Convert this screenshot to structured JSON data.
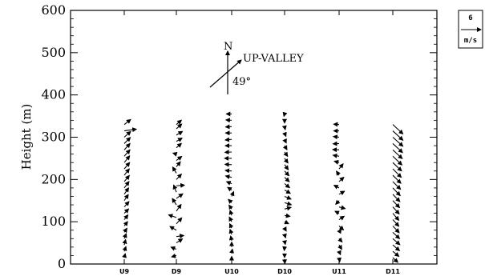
{
  "chart_data": {
    "type": "vector-profile",
    "ylabel": "Height (m)",
    "ylim": [
      0,
      600
    ],
    "yticks": [
      0,
      100,
      200,
      300,
      400,
      500,
      600
    ],
    "xlabel": "",
    "grid": false,
    "legend": {
      "placement": "top-right-outside",
      "value": "6",
      "unit": "m/s"
    },
    "annotation": {
      "north_label": "N",
      "direction_label": "UP-VALLEY",
      "angle_label": "49°",
      "angle_deg": 49
    },
    "profiles": [
      {
        "name": "U9",
        "vectors": [
          {
            "h": 15,
            "dx": 0.3,
            "dy": 1.2
          },
          {
            "h": 30,
            "dx": 0.5,
            "dy": 1.4
          },
          {
            "h": 45,
            "dx": 0.4,
            "dy": 1.6
          },
          {
            "h": 60,
            "dx": 0.6,
            "dy": 1.5
          },
          {
            "h": 75,
            "dx": 0.8,
            "dy": 1.2
          },
          {
            "h": 90,
            "dx": 1.0,
            "dy": 1.3
          },
          {
            "h": 105,
            "dx": 1.1,
            "dy": 1.4
          },
          {
            "h": 120,
            "dx": 1.3,
            "dy": 1.3
          },
          {
            "h": 135,
            "dx": 1.4,
            "dy": 1.6
          },
          {
            "h": 150,
            "dx": 1.2,
            "dy": 1.8
          },
          {
            "h": 165,
            "dx": 1.3,
            "dy": 1.9
          },
          {
            "h": 180,
            "dx": 1.4,
            "dy": 1.9
          },
          {
            "h": 195,
            "dx": 1.5,
            "dy": 1.8
          },
          {
            "h": 210,
            "dx": 1.5,
            "dy": 1.9
          },
          {
            "h": 225,
            "dx": 1.6,
            "dy": 1.9
          },
          {
            "h": 240,
            "dx": 1.6,
            "dy": 2.0
          },
          {
            "h": 255,
            "dx": 1.7,
            "dy": 1.9
          },
          {
            "h": 270,
            "dx": 1.7,
            "dy": 1.9
          },
          {
            "h": 285,
            "dx": 1.8,
            "dy": 1.8
          },
          {
            "h": 300,
            "dx": 1.9,
            "dy": 1.7
          },
          {
            "h": 315,
            "dx": 3.6,
            "dy": 0.5
          },
          {
            "h": 330,
            "dx": 1.9,
            "dy": 1.5
          }
        ]
      },
      {
        "name": "D9",
        "vectors": [
          {
            "h": 20,
            "dx": -1.4,
            "dy": -0.4
          },
          {
            "h": 35,
            "dx": -1.6,
            "dy": 0.6
          },
          {
            "h": 50,
            "dx": 1.8,
            "dy": 1.2
          },
          {
            "h": 65,
            "dx": 2.2,
            "dy": 0.3
          },
          {
            "h": 80,
            "dx": -1.9,
            "dy": 1.1
          },
          {
            "h": 95,
            "dx": 1.6,
            "dy": 1.8
          },
          {
            "h": 110,
            "dx": -2.3,
            "dy": 0.8
          },
          {
            "h": 125,
            "dx": 1.4,
            "dy": 2.0
          },
          {
            "h": 140,
            "dx": -1.2,
            "dy": 1.9
          },
          {
            "h": 155,
            "dx": 1.9,
            "dy": 1.4
          },
          {
            "h": 170,
            "dx": -0.8,
            "dy": 2.1
          },
          {
            "h": 185,
            "dx": 2.4,
            "dy": 0.2
          },
          {
            "h": 200,
            "dx": 1.5,
            "dy": 1.6
          },
          {
            "h": 215,
            "dx": -1.1,
            "dy": 1.8
          },
          {
            "h": 230,
            "dx": 1.2,
            "dy": 1.5
          },
          {
            "h": 245,
            "dx": 1.6,
            "dy": 1.2
          },
          {
            "h": 260,
            "dx": -1.0,
            "dy": 0.3
          },
          {
            "h": 275,
            "dx": 1.5,
            "dy": 1.3
          },
          {
            "h": 290,
            "dx": 1.7,
            "dy": 1.0
          },
          {
            "h": 305,
            "dx": 1.8,
            "dy": 1.1
          },
          {
            "h": 320,
            "dx": 1.6,
            "dy": 1.4
          },
          {
            "h": 330,
            "dx": 1.5,
            "dy": 1.3
          }
        ]
      },
      {
        "name": "U10",
        "vectors": [
          {
            "h": 10,
            "dx": 0.0,
            "dy": 1.0
          },
          {
            "h": 25,
            "dx": 0.2,
            "dy": 1.3
          },
          {
            "h": 40,
            "dx": 0.0,
            "dy": 1.5
          },
          {
            "h": 55,
            "dx": -0.3,
            "dy": 1.4
          },
          {
            "h": 70,
            "dx": -0.5,
            "dy": 1.5
          },
          {
            "h": 85,
            "dx": -0.6,
            "dy": 1.3
          },
          {
            "h": 100,
            "dx": -0.7,
            "dy": 1.4
          },
          {
            "h": 115,
            "dx": -0.5,
            "dy": 1.5
          },
          {
            "h": 130,
            "dx": -0.8,
            "dy": 1.2
          },
          {
            "h": 145,
            "dx": -1.0,
            "dy": 1.0
          },
          {
            "h": 160,
            "dx": 0.6,
            "dy": 1.4
          },
          {
            "h": 175,
            "dx": -1.2,
            "dy": 0.8
          },
          {
            "h": 190,
            "dx": -1.5,
            "dy": 0.6
          },
          {
            "h": 205,
            "dx": -1.8,
            "dy": 0.4
          },
          {
            "h": 220,
            "dx": -1.9,
            "dy": 0.2
          },
          {
            "h": 235,
            "dx": -2.0,
            "dy": 0.1
          },
          {
            "h": 250,
            "dx": -2.1,
            "dy": 0.0
          },
          {
            "h": 265,
            "dx": -2.0,
            "dy": -0.1
          },
          {
            "h": 280,
            "dx": -1.9,
            "dy": 0.0
          },
          {
            "h": 295,
            "dx": -1.9,
            "dy": -0.2
          },
          {
            "h": 310,
            "dx": -1.8,
            "dy": 0.0
          },
          {
            "h": 325,
            "dx": -1.8,
            "dy": -0.1
          },
          {
            "h": 340,
            "dx": -1.7,
            "dy": 0.1
          },
          {
            "h": 355,
            "dx": -1.6,
            "dy": 0.0
          }
        ]
      },
      {
        "name": "D10",
        "vectors": [
          {
            "h": 10,
            "dx": 0.1,
            "dy": -1.1
          },
          {
            "h": 25,
            "dx": 0.0,
            "dy": -1.2
          },
          {
            "h": 40,
            "dx": -0.1,
            "dy": -1.0
          },
          {
            "h": 55,
            "dx": 0.2,
            "dy": -1.1
          },
          {
            "h": 70,
            "dx": 0.3,
            "dy": -1.0
          },
          {
            "h": 85,
            "dx": 0.5,
            "dy": -0.9
          },
          {
            "h": 100,
            "dx": 1.2,
            "dy": -0.6
          },
          {
            "h": 115,
            "dx": 1.6,
            "dy": -0.3
          },
          {
            "h": 130,
            "dx": 1.9,
            "dy": 0.5
          },
          {
            "h": 145,
            "dx": 2.0,
            "dy": -0.6
          },
          {
            "h": 160,
            "dx": 1.9,
            "dy": -0.8
          },
          {
            "h": 175,
            "dx": 1.7,
            "dy": -1.0
          },
          {
            "h": 190,
            "dx": 1.5,
            "dy": -1.2
          },
          {
            "h": 205,
            "dx": 1.4,
            "dy": -1.3
          },
          {
            "h": 220,
            "dx": 1.3,
            "dy": -1.4
          },
          {
            "h": 235,
            "dx": 1.1,
            "dy": -1.5
          },
          {
            "h": 250,
            "dx": 1.0,
            "dy": -1.4
          },
          {
            "h": 265,
            "dx": 0.9,
            "dy": -1.3
          },
          {
            "h": 280,
            "dx": 0.7,
            "dy": -1.2
          },
          {
            "h": 295,
            "dx": 0.5,
            "dy": -1.1
          },
          {
            "h": 310,
            "dx": 0.4,
            "dy": -1.0
          },
          {
            "h": 325,
            "dx": 0.2,
            "dy": -0.9
          },
          {
            "h": 340,
            "dx": 0.0,
            "dy": -0.8
          },
          {
            "h": 355,
            "dx": -0.2,
            "dy": -0.7
          }
        ]
      },
      {
        "name": "U11",
        "vectors": [
          {
            "h": 15,
            "dx": 0.2,
            "dy": -1.2
          },
          {
            "h": 30,
            "dx": 0.4,
            "dy": -1.0
          },
          {
            "h": 45,
            "dx": 0.8,
            "dy": -1.3
          },
          {
            "h": 60,
            "dx": 0.9,
            "dy": -1.0
          },
          {
            "h": 75,
            "dx": 0.6,
            "dy": 0.9
          },
          {
            "h": 90,
            "dx": 1.3,
            "dy": -1.2
          },
          {
            "h": 105,
            "dx": 1.5,
            "dy": 1.0
          },
          {
            "h": 120,
            "dx": -1.2,
            "dy": 0.6
          },
          {
            "h": 135,
            "dx": 1.8,
            "dy": -0.5
          },
          {
            "h": 150,
            "dx": -1.0,
            "dy": -1.1
          },
          {
            "h": 165,
            "dx": 1.6,
            "dy": 0.9
          },
          {
            "h": 180,
            "dx": -1.5,
            "dy": 0.8
          },
          {
            "h": 195,
            "dx": 1.4,
            "dy": 1.3
          },
          {
            "h": 210,
            "dx": -0.8,
            "dy": 1.2
          },
          {
            "h": 225,
            "dx": 1.2,
            "dy": 1.5
          },
          {
            "h": 240,
            "dx": -1.4,
            "dy": 0.4
          },
          {
            "h": 255,
            "dx": -1.8,
            "dy": 0.3
          },
          {
            "h": 270,
            "dx": -1.9,
            "dy": 0.1
          },
          {
            "h": 285,
            "dx": -1.8,
            "dy": -0.1
          },
          {
            "h": 300,
            "dx": -1.7,
            "dy": 0.2
          },
          {
            "h": 315,
            "dx": -1.6,
            "dy": 0.0
          },
          {
            "h": 330,
            "dx": -1.6,
            "dy": 0.1
          }
        ]
      },
      {
        "name": "D11",
        "vectors": [
          {
            "h": 15,
            "dx": 1.5,
            "dy": -1.4
          },
          {
            "h": 30,
            "dx": 1.8,
            "dy": -1.5
          },
          {
            "h": 45,
            "dx": 2.0,
            "dy": -1.7
          },
          {
            "h": 60,
            "dx": 2.1,
            "dy": -1.8
          },
          {
            "h": 75,
            "dx": 2.0,
            "dy": -1.9
          },
          {
            "h": 90,
            "dx": 1.9,
            "dy": -2.0
          },
          {
            "h": 105,
            "dx": 1.8,
            "dy": -2.0
          },
          {
            "h": 120,
            "dx": 1.8,
            "dy": -2.1
          },
          {
            "h": 135,
            "dx": 1.9,
            "dy": -2.1
          },
          {
            "h": 150,
            "dx": 2.0,
            "dy": -2.1
          },
          {
            "h": 165,
            "dx": 2.1,
            "dy": -2.2
          },
          {
            "h": 180,
            "dx": 2.2,
            "dy": -2.3
          },
          {
            "h": 195,
            "dx": 2.3,
            "dy": -2.3
          },
          {
            "h": 210,
            "dx": 2.4,
            "dy": -2.4
          },
          {
            "h": 225,
            "dx": 2.5,
            "dy": -2.5
          },
          {
            "h": 240,
            "dx": 2.6,
            "dy": -2.5
          },
          {
            "h": 255,
            "dx": 2.7,
            "dy": -2.6
          },
          {
            "h": 270,
            "dx": 2.8,
            "dy": -2.6
          },
          {
            "h": 285,
            "dx": 2.9,
            "dy": -2.7
          },
          {
            "h": 300,
            "dx": 3.0,
            "dy": -2.7
          },
          {
            "h": 315,
            "dx": 3.0,
            "dy": -2.8
          },
          {
            "h": 330,
            "dx": 3.0,
            "dy": -2.8
          }
        ]
      }
    ]
  }
}
